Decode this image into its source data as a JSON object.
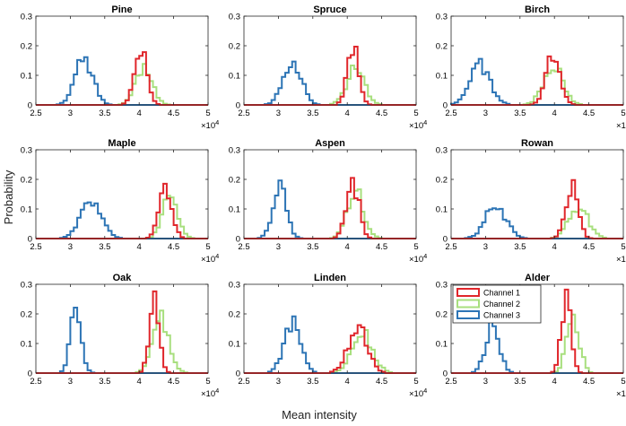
{
  "colors": {
    "ch1": "#e0262b",
    "ch2": "#a8df7e",
    "ch3": "#2c74b5",
    "axis": "#262626"
  },
  "chart_data": {
    "type": "histogram",
    "xlabel": "Mean intensity",
    "ylabel": "Probability",
    "x_exponent_label": "×10",
    "x_exponent": "4",
    "xlim": [
      2.5,
      5
    ],
    "ylim": [
      0,
      0.3
    ],
    "xticks": [
      "2.5",
      "3",
      "3.5",
      "4",
      "4.5",
      "5"
    ],
    "yticks": [
      "0",
      "0.1",
      "0.2",
      "0.3"
    ],
    "legend": {
      "panel": "Alder",
      "placement": "top-left",
      "entries": [
        "Channel 1",
        "Channel 2",
        "Channel 3"
      ]
    },
    "panels": [
      {
        "title": "Pine",
        "series": [
          {
            "channel": 1,
            "mean": 4.02,
            "sd": 0.09,
            "peak": 0.18
          },
          {
            "channel": 2,
            "mean": 4.07,
            "sd": 0.12,
            "peak": 0.13
          },
          {
            "channel": 3,
            "mean": 3.2,
            "sd": 0.13,
            "peak": 0.15
          }
        ]
      },
      {
        "title": "Spruce",
        "series": [
          {
            "channel": 1,
            "mean": 4.08,
            "sd": 0.08,
            "peak": 0.2
          },
          {
            "channel": 2,
            "mean": 4.12,
            "sd": 0.13,
            "peak": 0.12
          },
          {
            "channel": 3,
            "mean": 3.2,
            "sd": 0.13,
            "peak": 0.15
          }
        ]
      },
      {
        "title": "Birch",
        "series": [
          {
            "channel": 1,
            "mean": 3.98,
            "sd": 0.1,
            "peak": 0.18
          },
          {
            "channel": 2,
            "mean": 3.98,
            "sd": 0.14,
            "peak": 0.13
          },
          {
            "channel": 3,
            "mean": 2.92,
            "sd": 0.15,
            "peak": 0.13
          }
        ]
      },
      {
        "title": "Maple",
        "series": [
          {
            "channel": 1,
            "mean": 4.38,
            "sd": 0.09,
            "peak": 0.19
          },
          {
            "channel": 2,
            "mean": 4.45,
            "sd": 0.11,
            "peak": 0.14
          },
          {
            "channel": 3,
            "mean": 3.3,
            "sd": 0.15,
            "peak": 0.13
          }
        ]
      },
      {
        "title": "Aspen",
        "series": [
          {
            "channel": 1,
            "mean": 4.08,
            "sd": 0.09,
            "peak": 0.19
          },
          {
            "channel": 2,
            "mean": 4.12,
            "sd": 0.12,
            "peak": 0.16
          },
          {
            "channel": 3,
            "mean": 3.02,
            "sd": 0.1,
            "peak": 0.17
          }
        ]
      },
      {
        "title": "Rowan",
        "series": [
          {
            "channel": 1,
            "mean": 4.25,
            "sd": 0.09,
            "peak": 0.18
          },
          {
            "channel": 2,
            "mean": 4.35,
            "sd": 0.14,
            "peak": 0.11
          },
          {
            "channel": 3,
            "mean": 3.15,
            "sd": 0.15,
            "peak": 0.11
          }
        ]
      },
      {
        "title": "Oak",
        "series": [
          {
            "channel": 1,
            "mean": 4.22,
            "sd": 0.07,
            "peak": 0.27
          },
          {
            "channel": 2,
            "mean": 4.32,
            "sd": 0.12,
            "peak": 0.18
          },
          {
            "channel": 3,
            "mean": 3.08,
            "sd": 0.08,
            "peak": 0.2
          }
        ]
      },
      {
        "title": "Linden",
        "series": [
          {
            "channel": 1,
            "mean": 4.15,
            "sd": 0.14,
            "peak": 0.15
          },
          {
            "channel": 2,
            "mean": 4.22,
            "sd": 0.15,
            "peak": 0.13
          },
          {
            "channel": 3,
            "mean": 3.2,
            "sd": 0.12,
            "peak": 0.17
          }
        ]
      },
      {
        "title": "Alder",
        "series": [
          {
            "channel": 1,
            "mean": 4.17,
            "sd": 0.07,
            "peak": 0.25
          },
          {
            "channel": 2,
            "mean": 4.27,
            "sd": 0.09,
            "peak": 0.2
          },
          {
            "channel": 3,
            "mean": 3.1,
            "sd": 0.1,
            "peak": 0.16
          }
        ]
      }
    ]
  }
}
